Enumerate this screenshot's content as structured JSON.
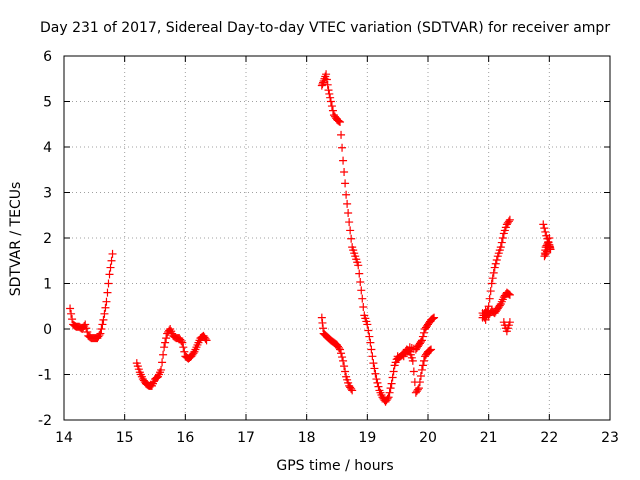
{
  "chart_data": {
    "type": "scatter",
    "title": "Day 231 of 2017, Sidereal Day-to-day VTEC variation (SDTVAR) for receiver ampr",
    "xlabel": "GPS time / hours",
    "ylabel": "SDTVAR / TECUs",
    "xlim": [
      14,
      23
    ],
    "ylim": [
      -2,
      6
    ],
    "xticks": [
      14,
      15,
      16,
      17,
      18,
      19,
      20,
      21,
      22,
      23
    ],
    "yticks": [
      -2,
      -1,
      0,
      1,
      2,
      3,
      4,
      5,
      6
    ],
    "grid": true,
    "marker": "+",
    "color": "#ff0000",
    "series": [
      {
        "name": "segment-1",
        "points": [
          [
            14.1,
            0.45
          ],
          [
            14.15,
            0.1
          ],
          [
            14.2,
            0.05
          ],
          [
            14.25,
            0.05
          ],
          [
            14.3,
            0.0
          ],
          [
            14.35,
            0.1
          ],
          [
            14.4,
            -0.15
          ],
          [
            14.45,
            -0.2
          ],
          [
            14.5,
            -0.2
          ],
          [
            14.55,
            -0.2
          ],
          [
            14.6,
            -0.1
          ],
          [
            14.65,
            0.2
          ],
          [
            14.7,
            0.6
          ],
          [
            14.75,
            1.2
          ],
          [
            14.8,
            1.65
          ]
        ]
      },
      {
        "name": "segment-2",
        "points": [
          [
            15.2,
            -0.75
          ],
          [
            15.25,
            -0.95
          ],
          [
            15.3,
            -1.1
          ],
          [
            15.35,
            -1.2
          ],
          [
            15.4,
            -1.25
          ],
          [
            15.45,
            -1.25
          ],
          [
            15.5,
            -1.1
          ],
          [
            15.55,
            -1.05
          ],
          [
            15.6,
            -0.9
          ],
          [
            15.65,
            -0.4
          ],
          [
            15.7,
            -0.1
          ],
          [
            15.75,
            0.0
          ],
          [
            15.8,
            -0.15
          ],
          [
            15.85,
            -0.2
          ],
          [
            15.9,
            -0.2
          ],
          [
            15.95,
            -0.3
          ],
          [
            16.0,
            -0.6
          ],
          [
            16.05,
            -0.65
          ],
          [
            16.1,
            -0.6
          ],
          [
            16.15,
            -0.5
          ],
          [
            16.2,
            -0.35
          ],
          [
            16.25,
            -0.2
          ],
          [
            16.3,
            -0.15
          ],
          [
            16.35,
            -0.25
          ]
        ]
      },
      {
        "name": "segment-3",
        "points": [
          [
            18.25,
            0.25
          ],
          [
            18.28,
            -0.1
          ],
          [
            18.32,
            -0.15
          ],
          [
            18.36,
            -0.2
          ],
          [
            18.4,
            -0.25
          ],
          [
            18.45,
            -0.3
          ],
          [
            18.5,
            -0.35
          ],
          [
            18.55,
            -0.45
          ],
          [
            18.6,
            -0.7
          ],
          [
            18.65,
            -1.05
          ],
          [
            18.7,
            -1.25
          ],
          [
            18.75,
            -1.35
          ]
        ]
      },
      {
        "name": "segment-4",
        "points": [
          [
            18.25,
            5.35
          ],
          [
            18.28,
            5.45
          ],
          [
            18.32,
            5.6
          ],
          [
            18.36,
            5.25
          ],
          [
            18.4,
            5.0
          ],
          [
            18.45,
            4.7
          ],
          [
            18.5,
            4.6
          ],
          [
            18.55,
            4.55
          ],
          [
            18.6,
            3.7
          ],
          [
            18.65,
            2.95
          ],
          [
            18.7,
            2.35
          ],
          [
            18.75,
            1.8
          ],
          [
            18.8,
            1.6
          ],
          [
            18.85,
            1.4
          ],
          [
            18.9,
            0.85
          ],
          [
            18.95,
            0.3
          ],
          [
            19.0,
            0.1
          ],
          [
            19.05,
            -0.3
          ],
          [
            19.1,
            -0.75
          ],
          [
            19.15,
            -1.1
          ],
          [
            19.2,
            -1.35
          ],
          [
            19.25,
            -1.5
          ],
          [
            19.3,
            -1.6
          ],
          [
            19.35,
            -1.5
          ],
          [
            19.4,
            -1.2
          ],
          [
            19.45,
            -0.8
          ],
          [
            19.5,
            -0.6
          ]
        ]
      },
      {
        "name": "segment-5",
        "points": [
          [
            19.5,
            -0.65
          ],
          [
            19.55,
            -0.6
          ],
          [
            19.6,
            -0.55
          ],
          [
            19.65,
            -0.45
          ],
          [
            19.7,
            -0.5
          ],
          [
            19.75,
            -0.7
          ],
          [
            19.8,
            -1.4
          ],
          [
            19.85,
            -1.3
          ],
          [
            19.9,
            -0.9
          ],
          [
            19.95,
            -0.6
          ],
          [
            20.0,
            -0.5
          ],
          [
            20.05,
            -0.45
          ]
        ]
      },
      {
        "name": "segment-6",
        "points": [
          [
            19.6,
            -0.6
          ],
          [
            19.7,
            -0.4
          ],
          [
            19.8,
            -0.45
          ],
          [
            19.85,
            -0.35
          ],
          [
            19.9,
            -0.25
          ],
          [
            19.95,
            0.0
          ],
          [
            20.0,
            0.1
          ],
          [
            20.05,
            0.2
          ],
          [
            20.1,
            0.25
          ]
        ]
      },
      {
        "name": "segment-7",
        "points": [
          [
            20.9,
            0.35
          ],
          [
            20.95,
            0.2
          ],
          [
            21.0,
            0.5
          ],
          [
            21.05,
            1.0
          ],
          [
            21.1,
            1.35
          ],
          [
            21.15,
            1.6
          ],
          [
            21.2,
            1.8
          ],
          [
            21.25,
            2.1
          ],
          [
            21.3,
            2.3
          ],
          [
            21.35,
            2.4
          ]
        ]
      },
      {
        "name": "segment-8",
        "points": [
          [
            20.9,
            0.25
          ],
          [
            20.95,
            0.4
          ],
          [
            21.0,
            0.3
          ],
          [
            21.05,
            0.4
          ],
          [
            21.1,
            0.35
          ],
          [
            21.15,
            0.45
          ],
          [
            21.2,
            0.55
          ],
          [
            21.25,
            0.7
          ],
          [
            21.3,
            0.8
          ],
          [
            21.35,
            0.75
          ]
        ]
      },
      {
        "name": "segment-9",
        "points": [
          [
            21.25,
            0.15
          ],
          [
            21.3,
            -0.05
          ],
          [
            21.35,
            0.15
          ]
        ]
      },
      {
        "name": "segment-10",
        "points": [
          [
            21.9,
            2.3
          ],
          [
            21.95,
            2.05
          ],
          [
            22.0,
            1.85
          ],
          [
            22.02,
            1.75
          ],
          [
            21.98,
            1.9
          ],
          [
            21.94,
            1.8
          ],
          [
            21.92,
            1.6
          ],
          [
            21.96,
            1.7
          ],
          [
            22.0,
            2.0
          ]
        ]
      }
    ]
  }
}
